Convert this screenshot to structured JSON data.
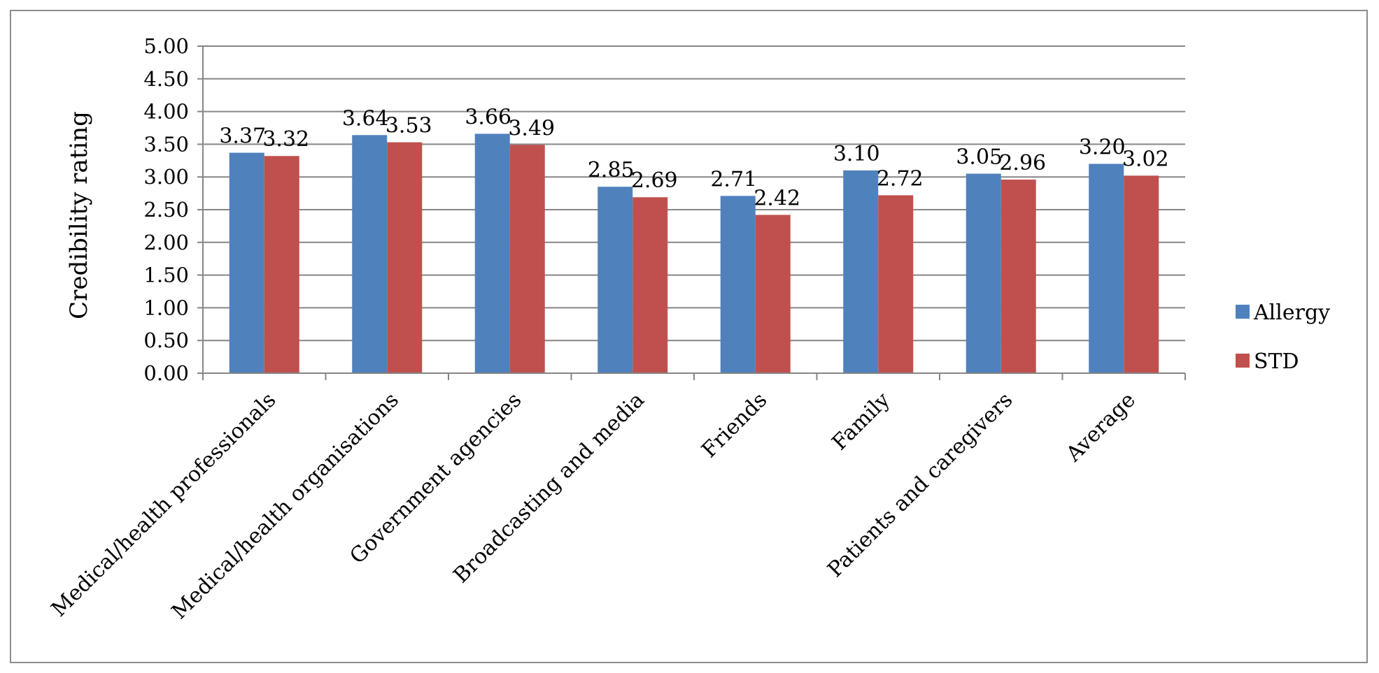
{
  "chart_data": {
    "type": "bar",
    "title": "",
    "xlabel": "",
    "ylabel": "Credibility rating",
    "ylim": [
      0,
      5
    ],
    "yticks": [
      "0.00",
      "0.50",
      "1.00",
      "1.50",
      "2.00",
      "2.50",
      "3.00",
      "3.50",
      "4.00",
      "4.50",
      "5.00"
    ],
    "grid": true,
    "legend_position": "right",
    "categories": [
      "Medical/health professionals",
      "Medical/health organisations",
      "Government agencies",
      "Broadcasting and media",
      "Friends",
      "Family",
      "Patients and caregivers",
      "Average"
    ],
    "series": [
      {
        "name": "Allergy",
        "color": "#4f81bd",
        "values": [
          3.37,
          3.64,
          3.66,
          2.85,
          2.71,
          3.1,
          3.05,
          3.2
        ],
        "labels": [
          "3.37",
          "3.64",
          "3.66",
          "2.85",
          "2.71",
          "3.10",
          "3.05",
          "3.20"
        ]
      },
      {
        "name": "STD",
        "color": "#c0504d",
        "values": [
          3.32,
          3.53,
          3.49,
          2.69,
          2.42,
          2.72,
          2.96,
          3.02
        ],
        "labels": [
          "3.32",
          "3.53",
          "3.49",
          "2.69",
          "2.42",
          "2.72",
          "2.96",
          "3.02"
        ]
      }
    ]
  }
}
